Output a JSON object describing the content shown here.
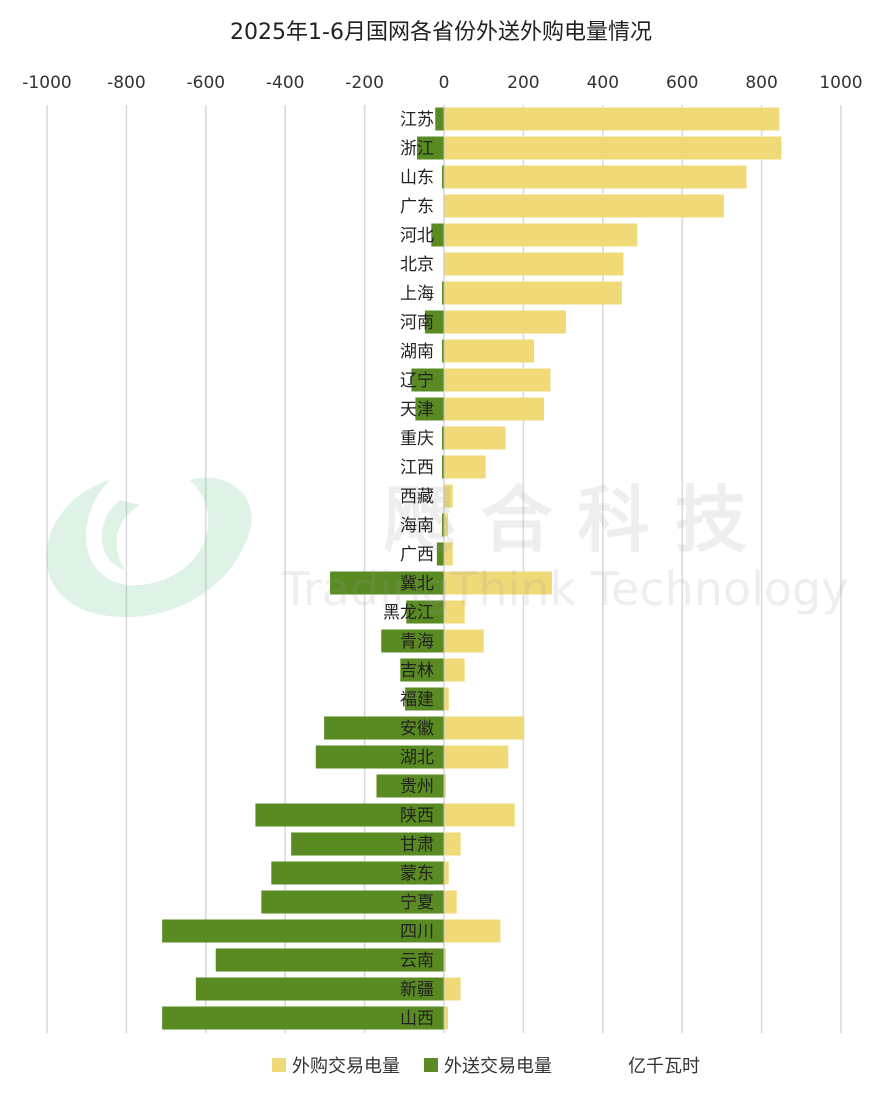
{
  "chart_data": {
    "type": "bar",
    "orientation": "horizontal",
    "title": "2025年1-6月国网各省份外送外购电量情况",
    "unit_label": "亿千瓦时",
    "xlim": [
      -1000,
      1000
    ],
    "x_ticks": [
      -1000,
      -800,
      -600,
      -400,
      -200,
      0,
      200,
      400,
      600,
      800,
      1000
    ],
    "grid": true,
    "legend_position": "bottom",
    "categories": [
      "江苏",
      "浙江",
      "山东",
      "广东",
      "河北",
      "北京",
      "上海",
      "河南",
      "湖南",
      "辽宁",
      "天津",
      "重庆",
      "江西",
      "西藏",
      "海南",
      "广西",
      "冀北",
      "黑龙江",
      "青海",
      "吉林",
      "福建",
      "安徽",
      "湖北",
      "贵州",
      "陕西",
      "甘肃",
      "蒙东",
      "宁夏",
      "四川",
      "云南",
      "新疆",
      "山西"
    ],
    "series": [
      {
        "name": "外购交易电量",
        "color": "#f0da78",
        "values": [
          845,
          850,
          762,
          705,
          487,
          452,
          448,
          307,
          227,
          268,
          252,
          155,
          105,
          22,
          10,
          22,
          272,
          52,
          100,
          52,
          12,
          202,
          162,
          5,
          178,
          42,
          12,
          32,
          142,
          5,
          42,
          10
        ]
      },
      {
        "name": "外送交易电量",
        "color": "#5a8a22",
        "values": [
          -22,
          -68,
          -5,
          0,
          -32,
          0,
          -5,
          -48,
          -5,
          -82,
          -72,
          -5,
          -5,
          0,
          -5,
          -18,
          -287,
          -95,
          -158,
          -110,
          -98,
          -302,
          -323,
          -170,
          -475,
          -385,
          -435,
          -460,
          -710,
          -575,
          -625,
          -710
        ]
      }
    ]
  },
  "watermark": {
    "cn": "飔 合 科 技",
    "en": "TradingThink Technology"
  }
}
